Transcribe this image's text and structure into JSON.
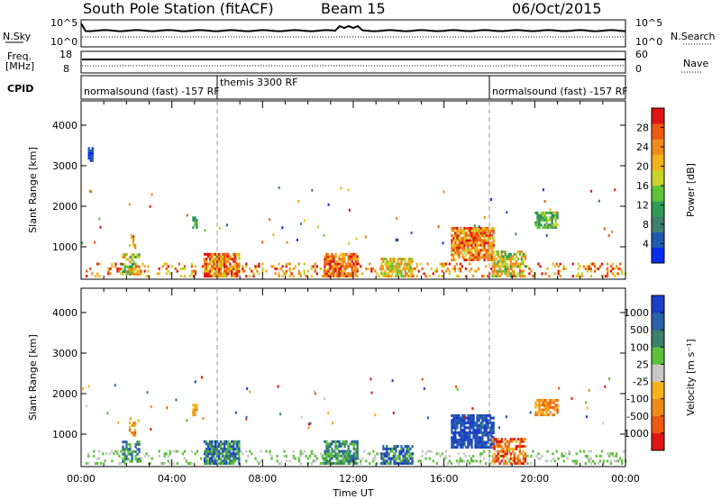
{
  "header": {
    "station": "South Pole Station (fitACF)",
    "beam": "Beam 15",
    "date": "06/Oct/2015"
  },
  "top_panels": {
    "nsky_label": "N.Sky",
    "nsky_ticks": [
      "10^5",
      "10^0"
    ],
    "nsearch_label": "N.Search",
    "nsearch_ticks": [
      "10^5",
      "10^0"
    ],
    "freq_label_1": "Freq.",
    "freq_label_2": "[MHz]",
    "freq_ticks": [
      "18",
      "8"
    ],
    "nave_label": "Nave",
    "nave_ticks": [
      "60",
      "0"
    ],
    "cpid_label": "CPID",
    "cpid_segments": [
      {
        "text": "normalsound (fast) -157 RF",
        "start_hour": 0
      },
      {
        "text": "themis 3300 RF",
        "start_hour": 6
      },
      {
        "text": "normalsound (fast) -157 RF",
        "start_hour": 18
      }
    ]
  },
  "chart_data": [
    {
      "type": "heatmap",
      "name": "power",
      "ylabel": "Slant Range [km]",
      "yticks": [
        "4000",
        "3000",
        "2000",
        "1000"
      ],
      "ylim": [
        200,
        4600
      ],
      "xlim": [
        0,
        24
      ],
      "colorbar_label": "Power [dB]",
      "colorbar_ticks": [
        "28",
        "24",
        "20",
        "16",
        "12",
        "8",
        "4"
      ],
      "colors": [
        "#0a2bf0",
        "#1f5bb0",
        "#3f7f6e",
        "#2f9a55",
        "#5ec43a",
        "#c8d42a",
        "#f2b21a",
        "#f08a18",
        "#ec5a12",
        "#e01515"
      ],
      "range_lines_hours": [
        6,
        18
      ]
    },
    {
      "type": "heatmap",
      "name": "velocity",
      "ylabel": "Slant Range [km]",
      "yticks": [
        "4000",
        "3000",
        "2000",
        "1000"
      ],
      "ylim": [
        200,
        4600
      ],
      "xlim": [
        0,
        24
      ],
      "colorbar_label": "Velocity [m s⁻¹]",
      "colorbar_ticks": [
        "1000",
        "500",
        "100",
        "25",
        "-25",
        "-100",
        "-500",
        "-1000"
      ],
      "colors": [
        "#1c3fc8",
        "#2a62a8",
        "#3c7f6a",
        "#5cc23a",
        "#c8c8c8",
        "#f2b21a",
        "#ef8a18",
        "#ec5a12",
        "#e01515"
      ],
      "range_lines_hours": [
        6,
        18
      ]
    }
  ],
  "xaxis": {
    "ticks": [
      "00:00",
      "04:00",
      "08:00",
      "12:00",
      "16:00",
      "20:00",
      "00:00"
    ],
    "label": "Time UT"
  }
}
